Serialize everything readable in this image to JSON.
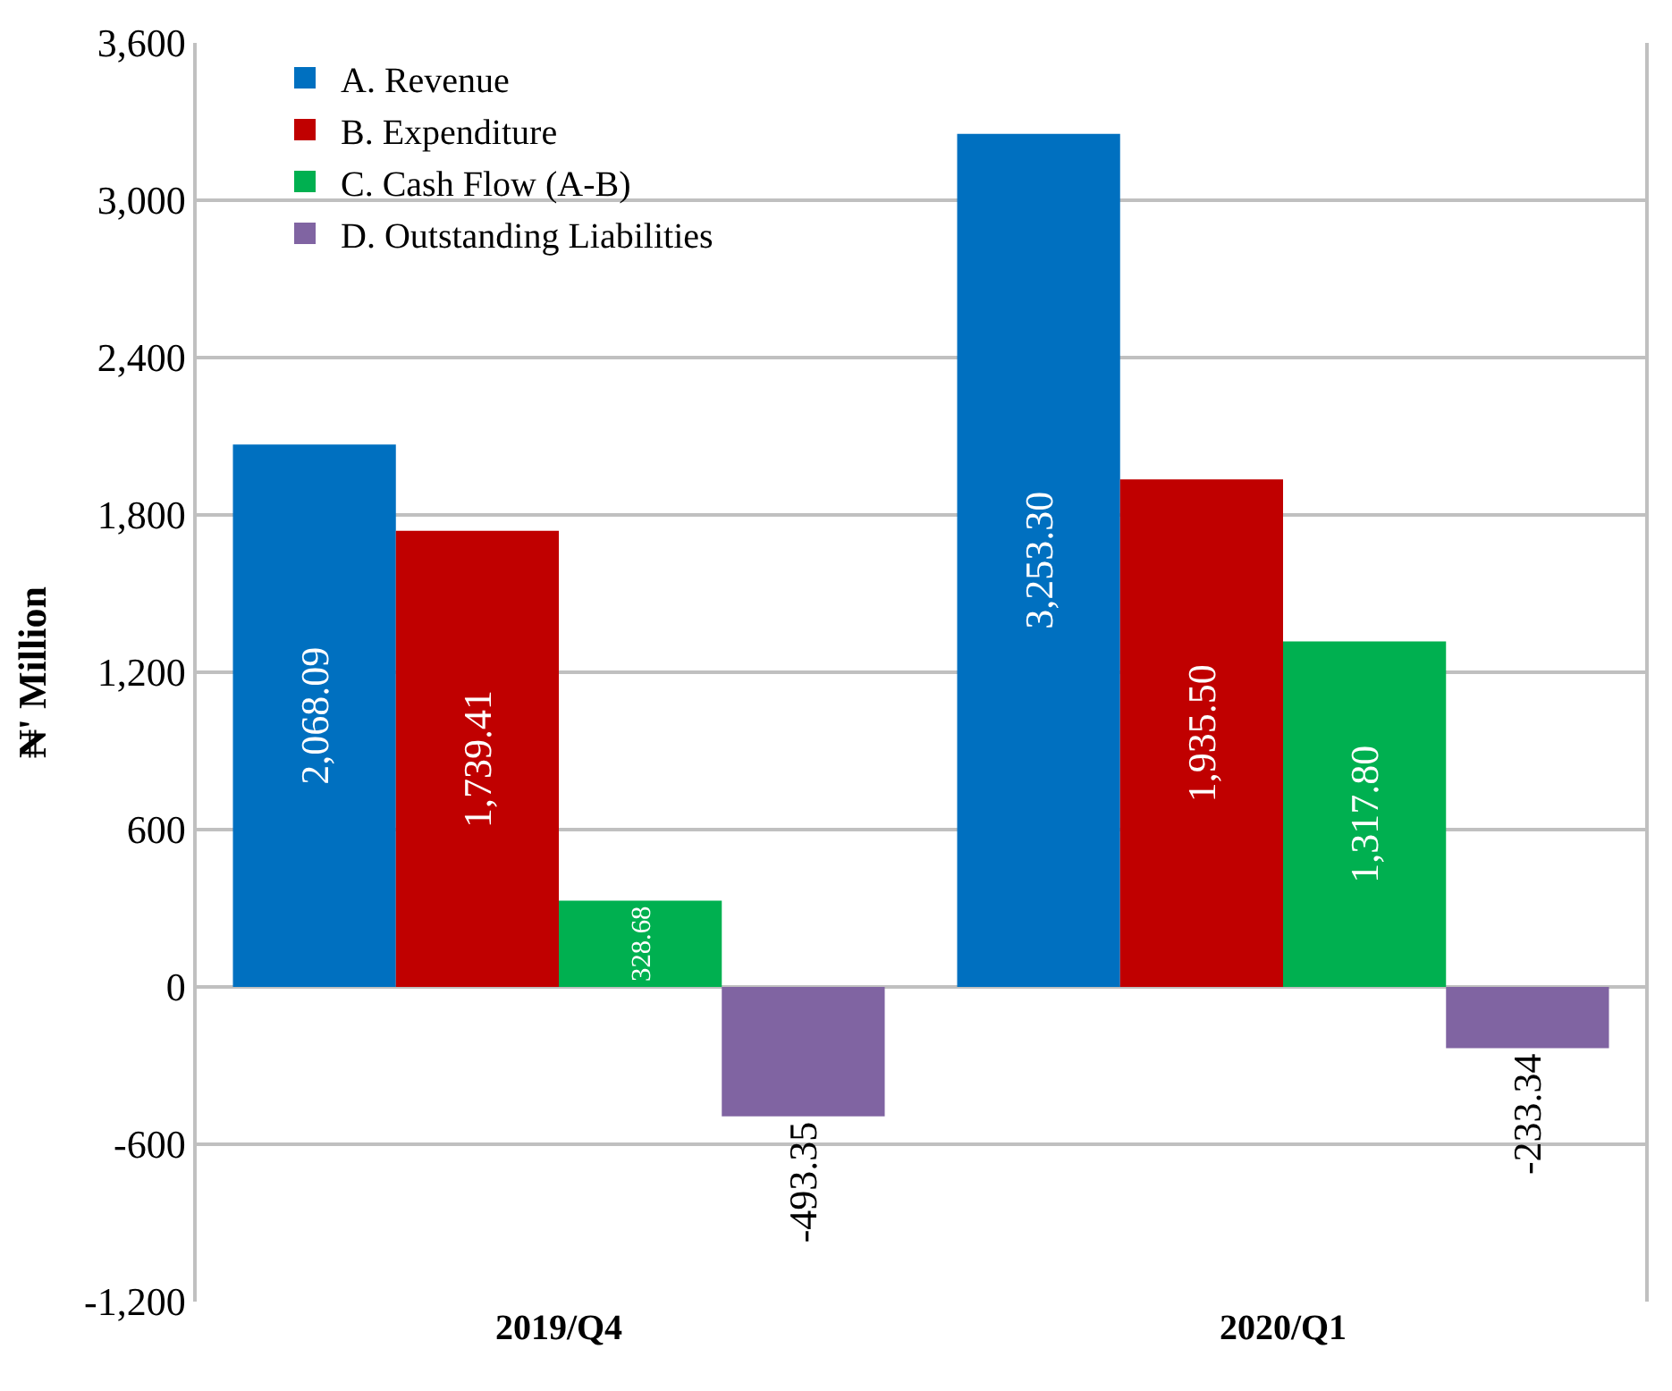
{
  "chart_data": {
    "type": "bar",
    "categories": [
      "2019/Q4",
      "2020/Q1"
    ],
    "ylabel": "₦' Million",
    "series": [
      {
        "name": "A. Revenue",
        "color": "#0070c0",
        "values": [
          2068.09,
          3253.3
        ],
        "value_labels": [
          "2,068.09",
          "3,253.30"
        ]
      },
      {
        "name": "B. Expenditure",
        "color": "#c00000",
        "values": [
          1739.41,
          1935.5
        ],
        "value_labels": [
          "1,739.41",
          "1,935.50"
        ]
      },
      {
        "name": "C. Cash Flow (A-B)",
        "color": "#00b050",
        "values": [
          328.68,
          1317.8
        ],
        "value_labels": [
          "328.68",
          "1,317.80"
        ]
      },
      {
        "name": "D. Outstanding Liabilities",
        "color": "#8064a2",
        "values": [
          -493.35,
          -233.34
        ],
        "value_labels": [
          "-493.35",
          "-233.34"
        ]
      }
    ],
    "ylim": [
      -1200,
      3600
    ],
    "yticks": [
      {
        "value": -1200,
        "label": "-1,200"
      },
      {
        "value": -600,
        "label": "-600"
      },
      0,
      600,
      {
        "value": 1200,
        "label": "1,200"
      },
      {
        "value": 1800,
        "label": "1,800"
      },
      {
        "value": 2400,
        "label": "2,400"
      },
      {
        "value": 3000,
        "label": "3,000"
      },
      {
        "value": 3600,
        "label": "3,600"
      }
    ],
    "grid": "y",
    "legend": "top left"
  }
}
